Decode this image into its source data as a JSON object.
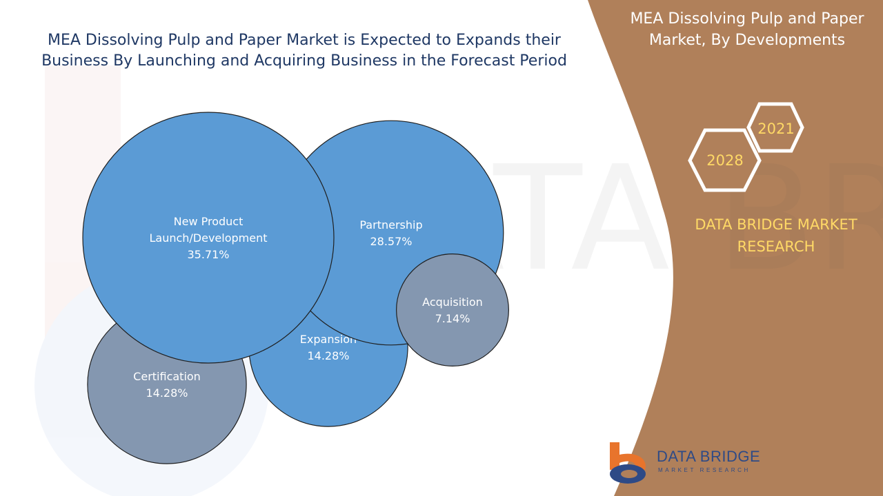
{
  "header": {
    "title": "MEA Dissolving Pulp and Paper Market is Expected to Expands their Business By Launching and Acquiring Business in the Forecast Period"
  },
  "side_panel": {
    "title": "MEA Dissolving Pulp and Paper Market, By Developments",
    "year_start": "2021",
    "year_end": "2028",
    "brand": "DATA BRIDGE MARKET RESEARCH"
  },
  "footer": {
    "logo_name": "DATA BRIDGE",
    "logo_sub": "MARKET RESEARCH"
  },
  "colors": {
    "accent_panel": "#b0805a",
    "bubble_primary": "#5b9bd5",
    "bubble_secondary": "#8497b0",
    "brand_text": "#ffd966",
    "title_text": "#1f3864"
  },
  "chart_data": {
    "type": "bubble",
    "series": [
      {
        "label": "New Product Launch/Development",
        "value": 35.71,
        "display": "35.71%",
        "group": "primary"
      },
      {
        "label": "Partnership",
        "value": 28.57,
        "display": "28.57%",
        "group": "primary"
      },
      {
        "label": "Expansion",
        "value": 14.28,
        "display": "14.28%",
        "group": "primary"
      },
      {
        "label": "Certification",
        "value": 14.28,
        "display": "14.28%",
        "group": "secondary"
      },
      {
        "label": "Acquisition",
        "value": 7.14,
        "display": "7.14%",
        "group": "secondary"
      }
    ]
  }
}
